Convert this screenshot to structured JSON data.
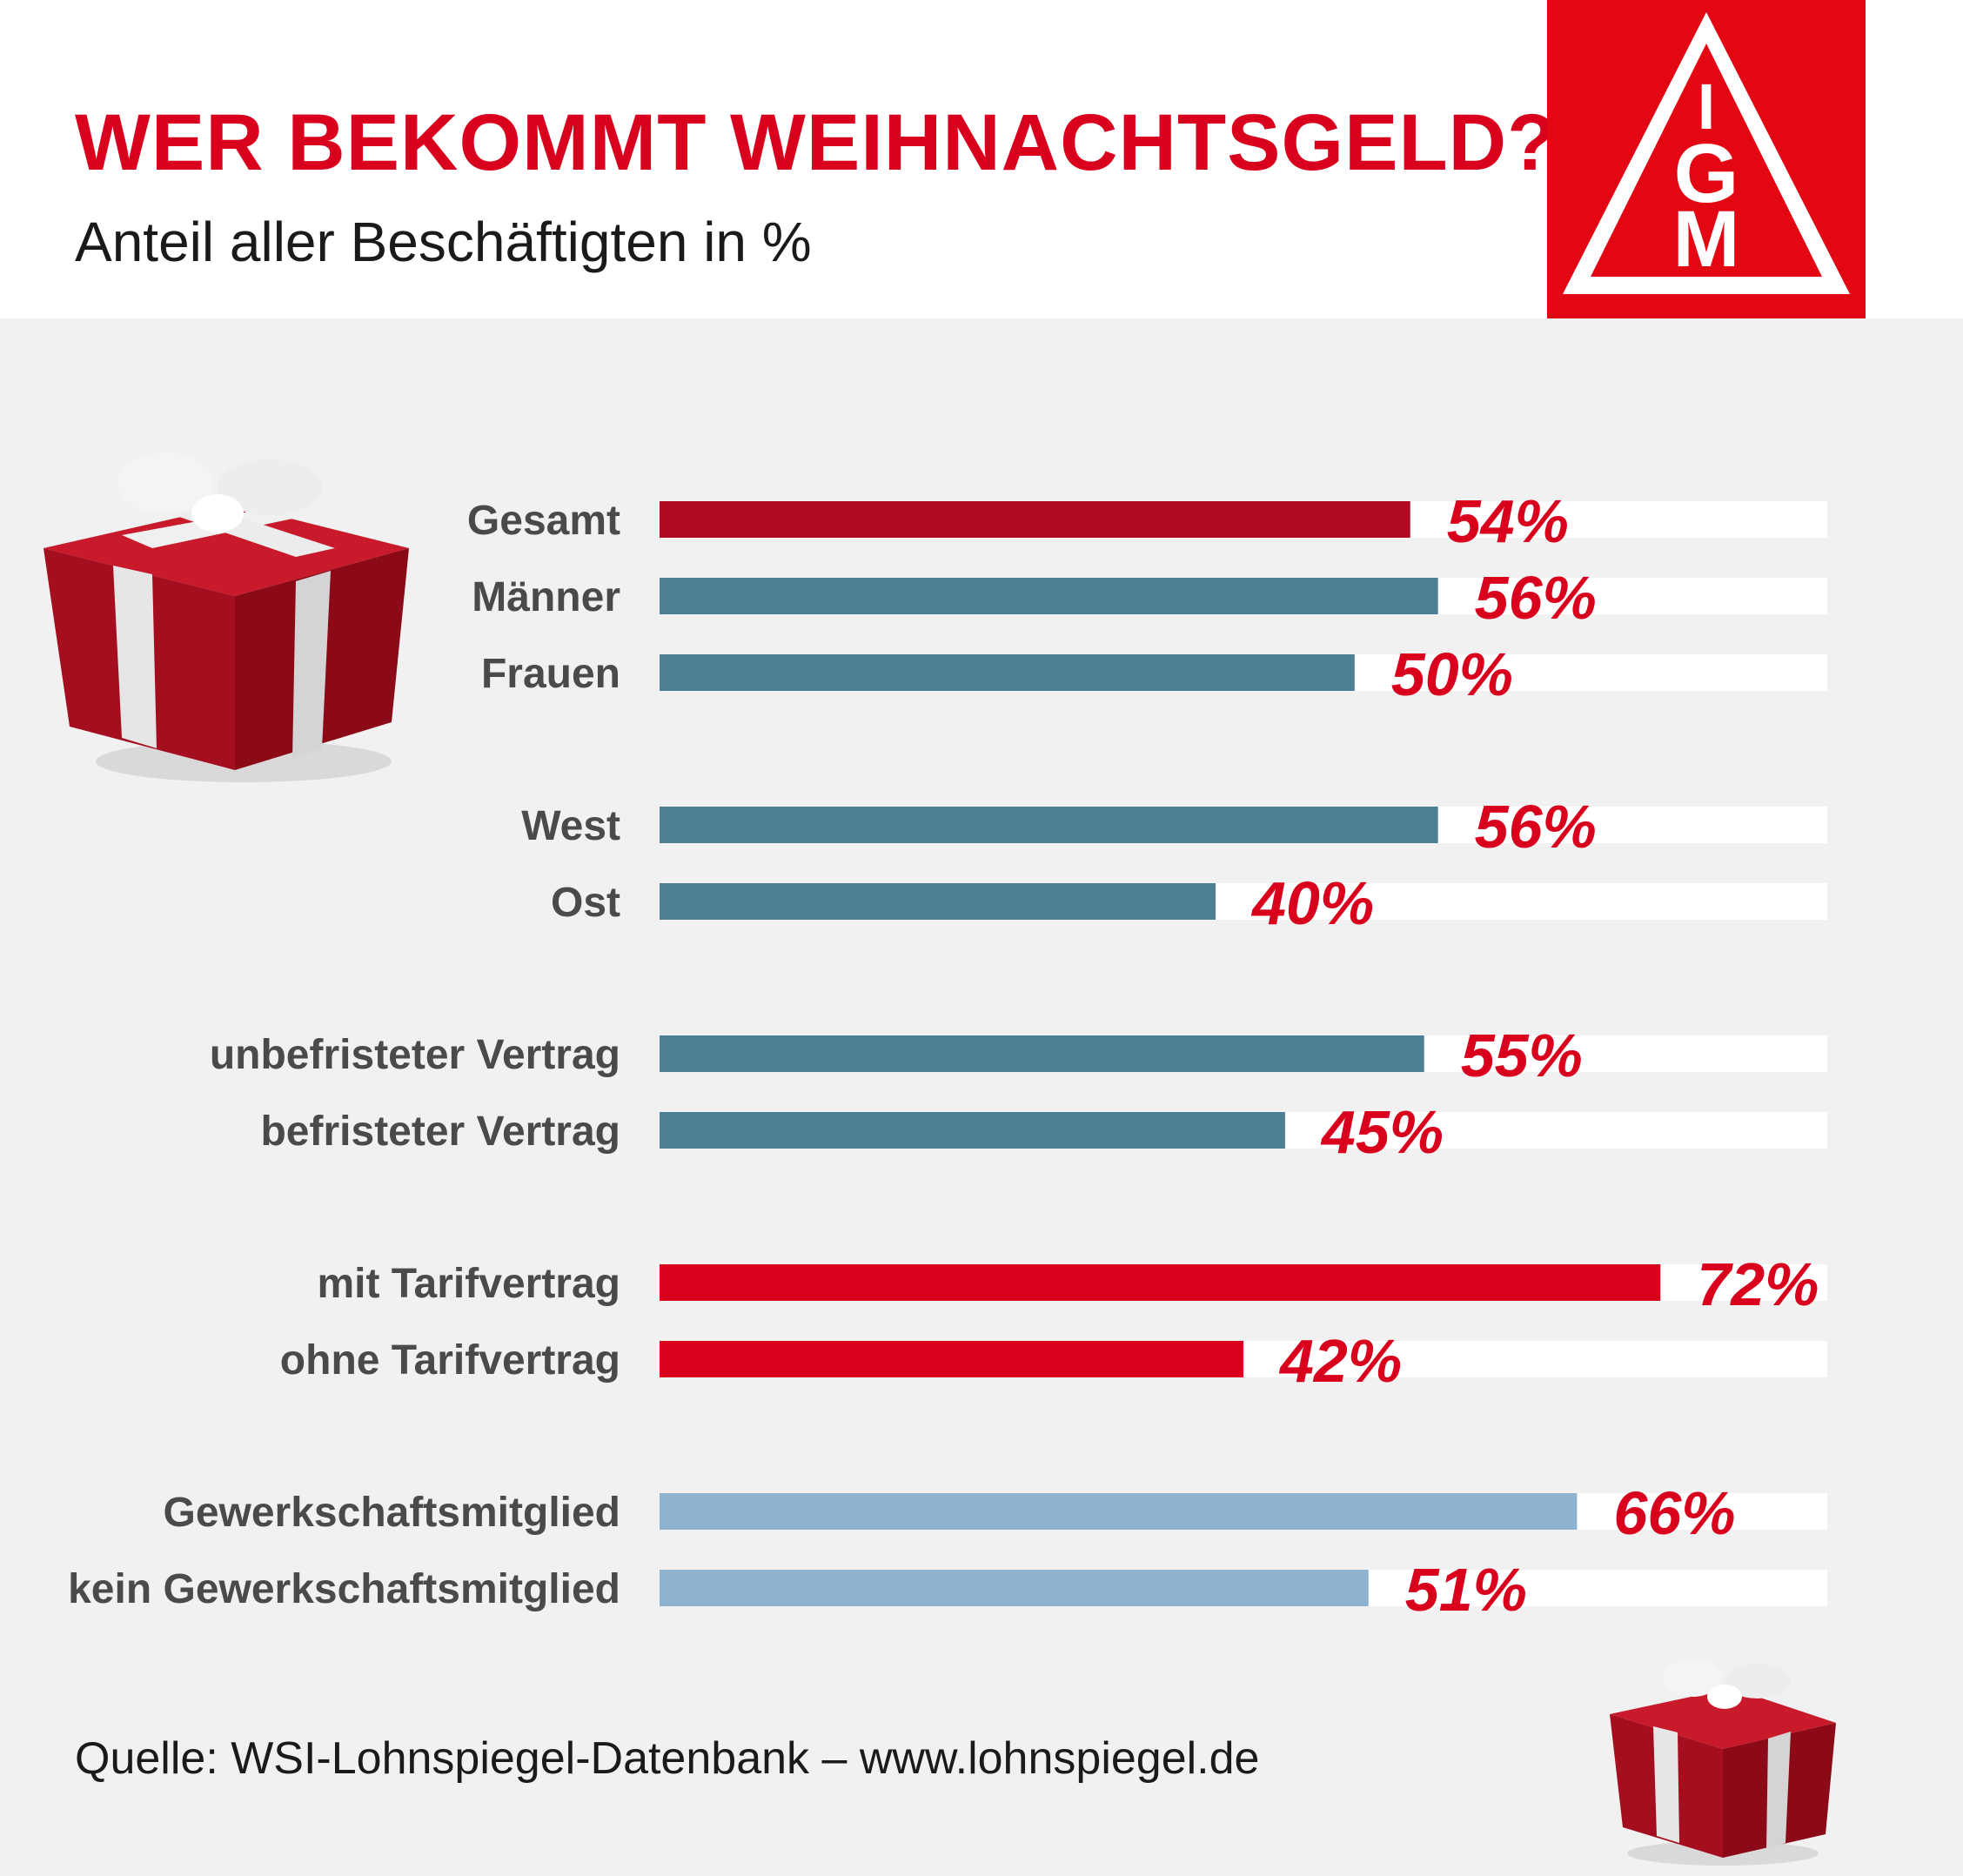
{
  "header": {
    "title": "WER BEKOMMT WEIHNACHTSGELD?",
    "subtitle": "Anteil aller Beschäftigten in %"
  },
  "logo": {
    "letters": [
      "I",
      "G",
      "M"
    ],
    "icon": "ig-metall-logo",
    "color": "#e30613"
  },
  "footer": {
    "source": "Quelle: WSI-Lohnspiegel-Datenbank – www.lohnspiegel.de"
  },
  "decorations": [
    "gift-box-icon",
    "gift-box-icon"
  ],
  "chart_data": {
    "type": "bar",
    "orientation": "horizontal",
    "categories": [
      "Gesamt",
      "Männer",
      "Frauen",
      "West",
      "Ost",
      "unbefristeter Vertrag",
      "befristeter Vertrag",
      "mit Tarifvertrag",
      "ohne Tarifvertrag",
      "Gewerkschaftsmitglied",
      "kein Gewerkschaftsmitglied"
    ],
    "values": [
      54,
      56,
      50,
      56,
      40,
      55,
      45,
      72,
      42,
      66,
      51
    ],
    "value_labels": [
      "54%",
      "56%",
      "50%",
      "56%",
      "40%",
      "55%",
      "45%",
      "72%",
      "42%",
      "66%",
      "51%"
    ],
    "groups": [
      [
        0,
        1,
        2
      ],
      [
        3,
        4
      ],
      [
        5,
        6
      ],
      [
        7,
        8
      ],
      [
        9,
        10
      ]
    ],
    "bar_colors": [
      "#b00b22",
      "#4e7f95",
      "#4e7f95",
      "#4e7f95",
      "#4e7f95",
      "#4e7f95",
      "#4e7f95",
      "#d8001c",
      "#d8001c",
      "#8fb3cf",
      "#8fb3cf"
    ],
    "track_color": "#ffffff",
    "value_color": "#d8001c",
    "xlim": [
      0,
      84
    ],
    "grid": false,
    "title": "WER BEKOMMT WEIHNACHTSGELD?",
    "subtitle": "Anteil aller Beschäftigten in %"
  }
}
